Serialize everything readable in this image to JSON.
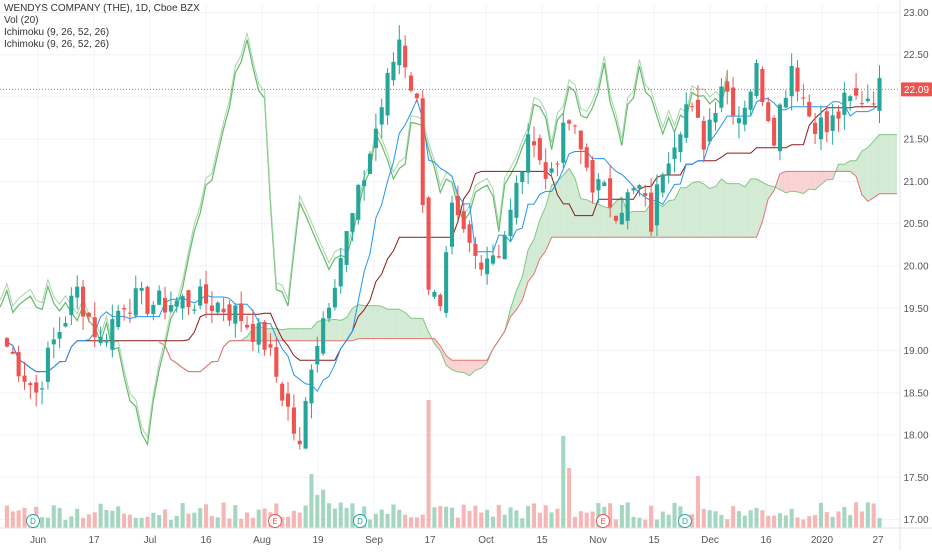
{
  "legend": {
    "symbol": "WENDYS COMPANY (THE), 1D, Cboe BZX",
    "vol": "Vol (20)",
    "ichimoku_1": "Ichimoku (9, 26, 52, 26)",
    "ichimoku_2": "Ichimoku (9, 26, 52, 26)"
  },
  "colors": {
    "up": "#26a69a",
    "down": "#ef5350",
    "vol_up": "#a5d6c2",
    "vol_down": "#f7b6b6",
    "conversion": "#2196f3",
    "base": "#8b1a1a",
    "lagging": "#66bb6a",
    "cloud_bull": "#c8e6c9",
    "cloud_bear": "#f8c8c8",
    "price_line": "#ef5350",
    "grid": "#f0f3fa"
  },
  "chart_data": {
    "type": "candlestick",
    "title": "WENDYS COMPANY (THE), 1D, Cboe BZX",
    "ylim": [
      16.9,
      23.1
    ],
    "y_ticks": [
      "17.00",
      "17.50",
      "18.00",
      "18.50",
      "19.00",
      "19.50",
      "20.00",
      "20.50",
      "21.00",
      "21.50",
      "22.00",
      "22.50",
      "23.00"
    ],
    "x_ticks": [
      "Jun",
      "17",
      "Jul",
      "16",
      "Aug",
      "19",
      "Sep",
      "17",
      "Oct",
      "15",
      "Nov",
      "15",
      "Dec",
      "16",
      "2020",
      "27"
    ],
    "last_price": "22.09",
    "events": [
      "D",
      "E",
      "D",
      "E",
      "D"
    ],
    "bars": 150,
    "close_path": [
      [
        0,
        19.05
      ],
      [
        5,
        18.5
      ],
      [
        8,
        19.1
      ],
      [
        12,
        19.7
      ],
      [
        16,
        19.1
      ],
      [
        20,
        19.6
      ],
      [
        26,
        19.55
      ],
      [
        32,
        19.6
      ],
      [
        36,
        19.55
      ],
      [
        40,
        19.4
      ],
      [
        44,
        19.1
      ],
      [
        48,
        18.3
      ],
      [
        50,
        17.8
      ],
      [
        52,
        18.9
      ],
      [
        56,
        19.9
      ],
      [
        60,
        20.8
      ],
      [
        64,
        21.9
      ],
      [
        67,
        22.7
      ],
      [
        70,
        21.9
      ],
      [
        72,
        19.8
      ],
      [
        74,
        19.4
      ],
      [
        76,
        20.6
      ],
      [
        80,
        20.1
      ],
      [
        84,
        20.2
      ],
      [
        86,
        20.6
      ],
      [
        88,
        21.2
      ],
      [
        90,
        21.6
      ],
      [
        92,
        21.0
      ],
      [
        96,
        21.7
      ],
      [
        100,
        21.0
      ],
      [
        104,
        20.7
      ],
      [
        108,
        20.9
      ],
      [
        110,
        20.5
      ],
      [
        112,
        21.2
      ],
      [
        116,
        21.9
      ],
      [
        119,
        21.5
      ],
      [
        122,
        22.2
      ],
      [
        125,
        21.8
      ],
      [
        128,
        22.3
      ],
      [
        131,
        21.6
      ],
      [
        134,
        22.4
      ],
      [
        137,
        21.8
      ],
      [
        140,
        21.6
      ],
      [
        143,
        21.9
      ],
      [
        146,
        22.0
      ],
      [
        149,
        22.09
      ]
    ]
  }
}
